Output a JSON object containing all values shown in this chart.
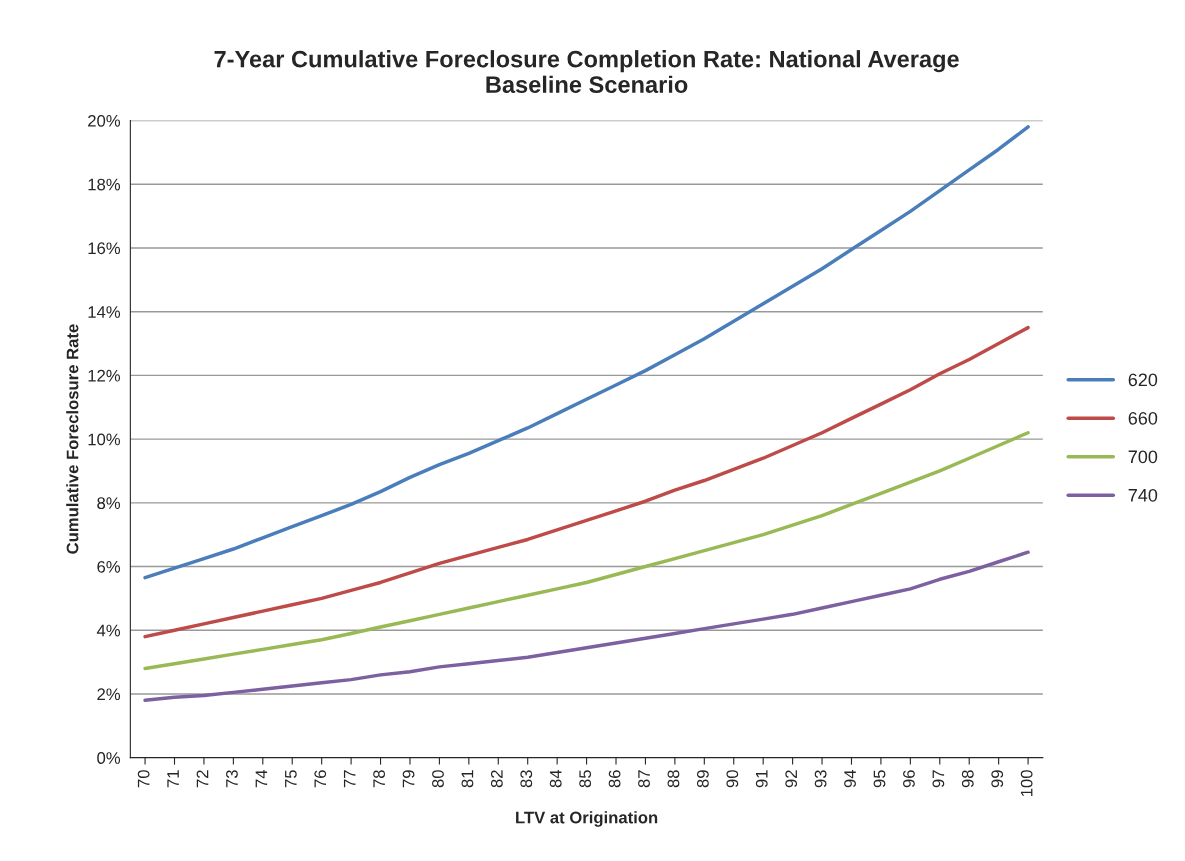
{
  "chart_data": {
    "type": "line",
    "title": "7-Year Cumulative Foreclosure Completion Rate: National Average\nBaseline Scenario",
    "xlabel": "LTV at Origination",
    "ylabel": "Cumulative Foreclosure Rate",
    "categories": [
      "70",
      "71",
      "72",
      "73",
      "74",
      "75",
      "76",
      "77",
      "78",
      "79",
      "80",
      "81",
      "82",
      "83",
      "84",
      "85",
      "86",
      "87",
      "88",
      "89",
      "90",
      "91",
      "92",
      "93",
      "94",
      "95",
      "96",
      "97",
      "98",
      "99",
      "100"
    ],
    "series": [
      {
        "name": "620",
        "color": "#4a7ebb",
        "values": [
          5.65,
          5.95,
          6.25,
          6.55,
          6.9,
          7.25,
          7.6,
          7.95,
          8.35,
          8.8,
          9.2,
          9.55,
          9.95,
          10.35,
          10.8,
          11.25,
          11.7,
          12.15,
          12.65,
          13.15,
          13.7,
          14.25,
          14.8,
          15.35,
          15.95,
          16.55,
          17.15,
          17.8,
          18.45,
          19.1,
          19.8
        ]
      },
      {
        "name": "660",
        "color": "#be4b48",
        "values": [
          3.8,
          4.0,
          4.2,
          4.4,
          4.6,
          4.8,
          5.0,
          5.25,
          5.5,
          5.8,
          6.1,
          6.35,
          6.6,
          6.85,
          7.15,
          7.45,
          7.75,
          8.05,
          8.4,
          8.7,
          9.05,
          9.4,
          9.8,
          10.2,
          10.65,
          11.1,
          11.55,
          12.05,
          12.5,
          13.0,
          13.5
        ]
      },
      {
        "name": "700",
        "color": "#98b954",
        "values": [
          2.8,
          2.95,
          3.1,
          3.25,
          3.4,
          3.55,
          3.7,
          3.9,
          4.1,
          4.3,
          4.5,
          4.7,
          4.9,
          5.1,
          5.3,
          5.5,
          5.75,
          6.0,
          6.25,
          6.5,
          6.75,
          7.0,
          7.3,
          7.6,
          7.95,
          8.3,
          8.65,
          9.0,
          9.4,
          9.8,
          10.2
        ]
      },
      {
        "name": "740",
        "color": "#7d60a0",
        "values": [
          1.8,
          1.9,
          1.95,
          2.05,
          2.15,
          2.25,
          2.35,
          2.45,
          2.6,
          2.7,
          2.85,
          2.95,
          3.05,
          3.15,
          3.3,
          3.45,
          3.6,
          3.75,
          3.9,
          4.05,
          4.2,
          4.35,
          4.5,
          4.7,
          4.9,
          5.1,
          5.3,
          5.6,
          5.85,
          6.15,
          6.45
        ]
      }
    ],
    "ylim": [
      0,
      20
    ],
    "yticks": [
      {
        "value": 0,
        "label": "0%"
      },
      {
        "value": 2,
        "label": "2%"
      },
      {
        "value": 4,
        "label": "4%"
      },
      {
        "value": 6,
        "label": "6%"
      },
      {
        "value": 8,
        "label": "8%"
      },
      {
        "value": 10,
        "label": "10%"
      },
      {
        "value": 12,
        "label": "12%"
      },
      {
        "value": 14,
        "label": "14%"
      },
      {
        "value": 16,
        "label": "16%"
      },
      {
        "value": 18,
        "label": "18%"
      },
      {
        "value": 20,
        "label": "20%"
      }
    ],
    "grid": "y",
    "legend": "right",
    "marker": "none",
    "line_style": "solid"
  }
}
